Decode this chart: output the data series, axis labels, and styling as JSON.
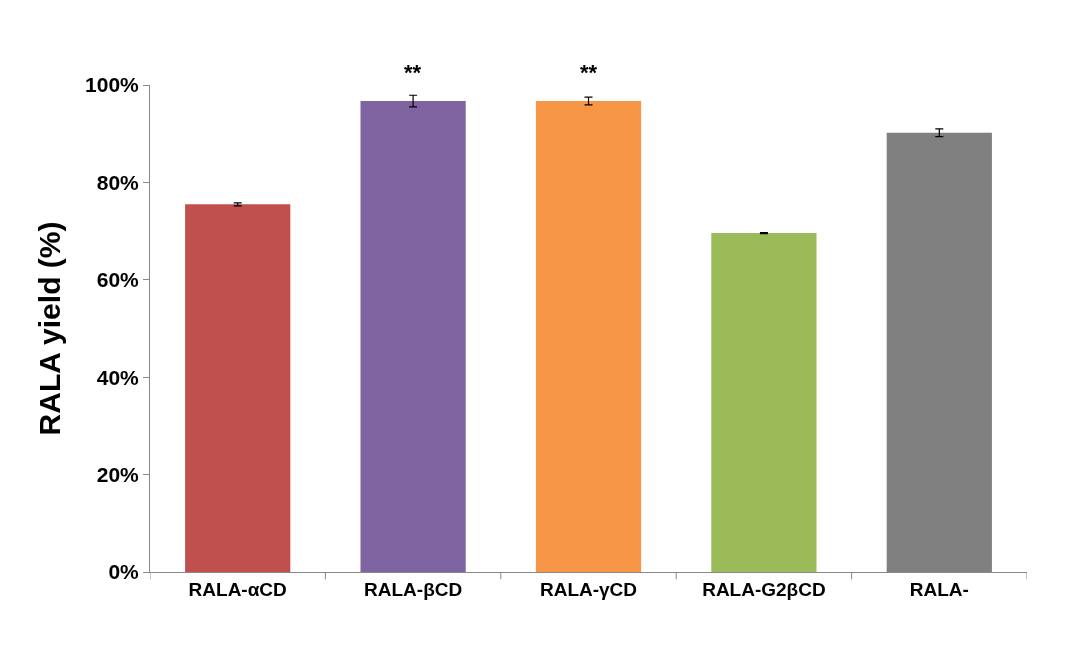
{
  "chart_data": {
    "type": "bar",
    "ylabel": "RALA yield (%)",
    "categories": [
      "RALA-αCD",
      "RALA-βCD",
      "RALA-γCD",
      "RALA-G2βCD",
      "RALA-"
    ],
    "values": [
      75.5,
      96.7,
      96.7,
      69.6,
      90.2
    ],
    "errors": [
      0.3,
      1.2,
      0.8,
      0.1,
      0.8
    ],
    "colors": [
      "#c0504d",
      "#8064a2",
      "#f79646",
      "#9bbb59",
      "#808080"
    ],
    "ylim": [
      0,
      100
    ],
    "yticks": [
      {
        "value": 0,
        "label": "0%"
      },
      {
        "value": 20,
        "label": "20%"
      },
      {
        "value": 40,
        "label": "40%"
      },
      {
        "value": 60,
        "label": "60%"
      },
      {
        "value": 80,
        "label": "80%"
      },
      {
        "value": 100,
        "label": "100%"
      }
    ],
    "annotations": [
      {
        "text": "**",
        "x": "RALA-βCD",
        "y": 96.7
      },
      {
        "text": "**",
        "x": "RALA-γCD",
        "y": 96.7
      }
    ]
  }
}
